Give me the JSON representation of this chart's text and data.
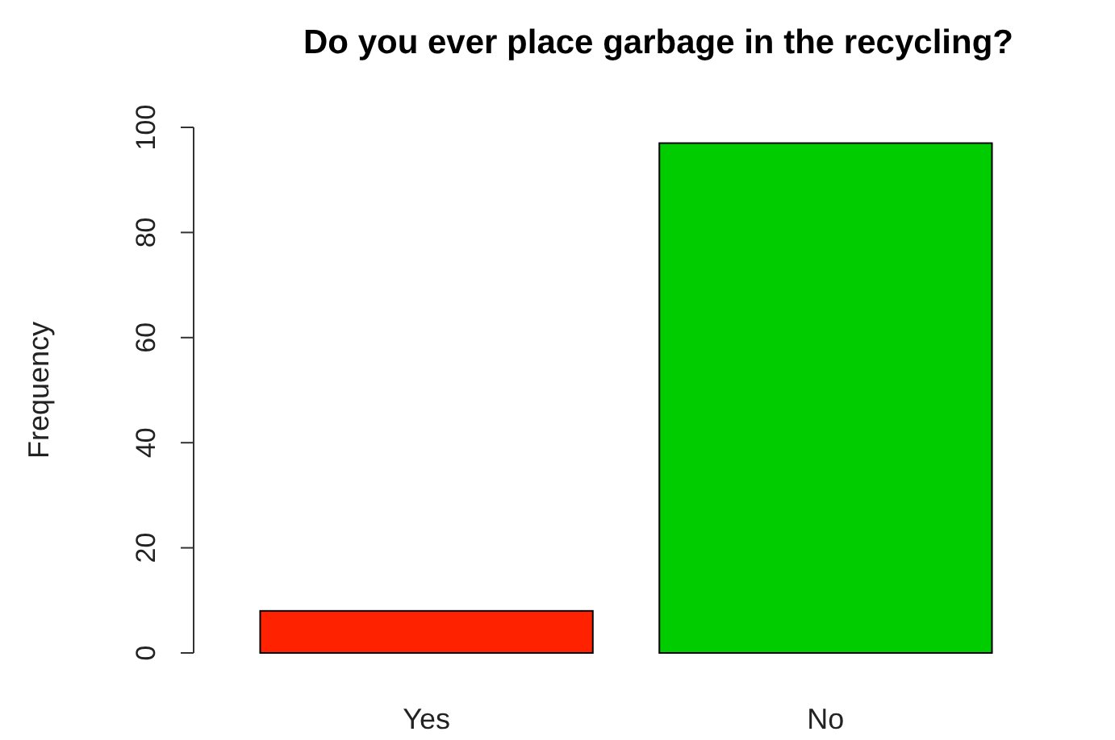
{
  "chart_data": {
    "type": "bar",
    "title": "Do you ever place garbage in the recycling?",
    "ylabel": "Frequency",
    "categories": [
      "Yes",
      "No"
    ],
    "values": [
      8,
      97
    ],
    "colors": [
      "#ff2200",
      "#00cc00"
    ],
    "ylim": [
      0,
      100
    ],
    "yticks": [
      0,
      20,
      40,
      60,
      80,
      100
    ]
  }
}
